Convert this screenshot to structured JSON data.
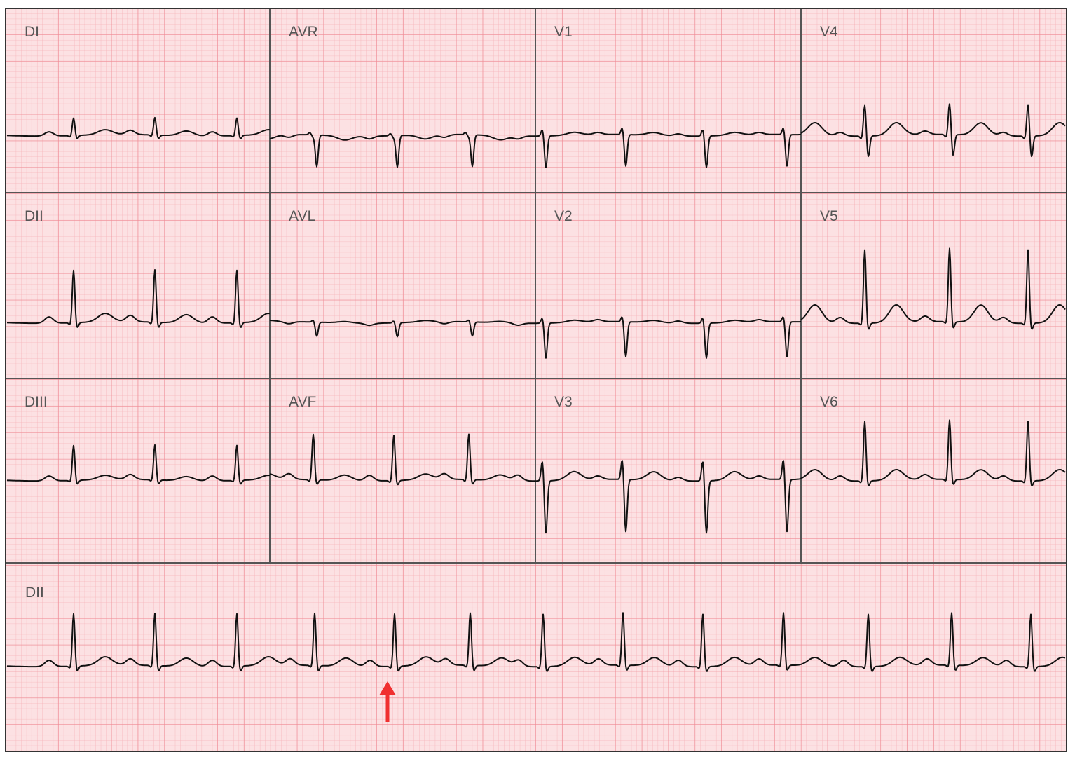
{
  "leads": [
    [
      "DI",
      "AVR",
      "V1",
      "V4"
    ],
    [
      "DII",
      "AVL",
      "V2",
      "V5"
    ],
    [
      "DIII",
      "AVF",
      "V3",
      "V6"
    ]
  ],
  "rhythm_strip": "DII"
}
